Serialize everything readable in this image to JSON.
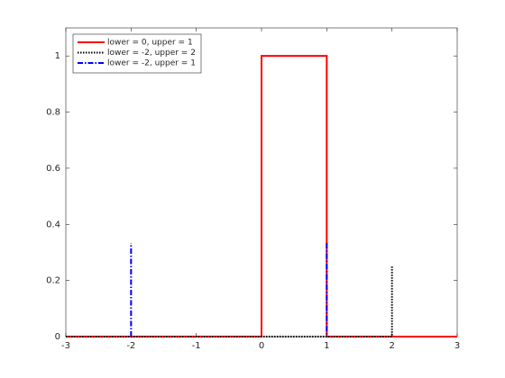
{
  "chart_data": {
    "type": "line",
    "series": [
      {
        "name": "lower = 0, upper = 1",
        "color": "#ff0000",
        "style": "solid",
        "x": [
          -3,
          0,
          0,
          1,
          1,
          3
        ],
        "values": [
          0,
          0,
          1,
          1,
          0,
          0
        ]
      },
      {
        "name": "lower = -2, upper = 2",
        "color": "#000000",
        "style": "dotted",
        "x": [
          -3,
          2,
          2
        ],
        "values": [
          0,
          0,
          0.25
        ]
      },
      {
        "name": "lower = -2, upper = 1",
        "color": "#0000ff",
        "style": "dashdot",
        "x": [
          -2,
          -2,
          -2,
          1,
          1
        ],
        "values": [
          0,
          0.333,
          null,
          0.333,
          0
        ]
      }
    ],
    "xlim": [
      -3,
      3
    ],
    "xticks": [
      -3,
      -2,
      -1,
      0,
      1,
      2,
      3
    ],
    "ylim": [
      0,
      1.1
    ],
    "yticks": [
      0,
      0.2,
      0.4,
      0.6,
      0.8,
      1
    ],
    "grid": false,
    "legend": "top-left"
  }
}
